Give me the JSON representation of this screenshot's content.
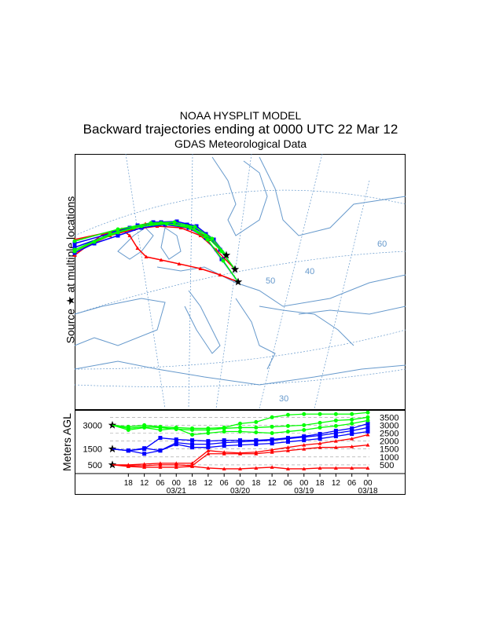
{
  "header": {
    "line1": "NOAA HYSPLIT MODEL",
    "line2": "Backward trajectories ending at 0000 UTC 22 Mar 12",
    "line3": "GDAS Meteorological Data"
  },
  "map": {
    "side_label": "Source ★ at multiple locations",
    "graticule_labels": [
      "60",
      "40",
      "50",
      "30"
    ]
  },
  "colors": {
    "red": "#ff0000",
    "blue": "#0000ff",
    "green": "#00ff00",
    "map": "#6699cc"
  },
  "chart_data": {
    "type": "line",
    "title": "Backward trajectories ending at 0000 UTC 22 Mar 12",
    "ylabel": "Meters AGL",
    "ylim": [
      0,
      4000
    ],
    "left_ticks": [
      "3000",
      "1500",
      "500"
    ],
    "right_ticks": [
      "3500",
      "3000",
      "2500",
      "2000",
      "1500",
      "1000",
      "500"
    ],
    "x_hours_back": [
      0,
      6,
      12,
      18,
      24,
      30,
      36,
      42,
      48,
      54,
      60,
      66,
      72,
      78,
      84,
      90,
      96
    ],
    "x_tick_labels": [
      "18",
      "12",
      "06",
      "00",
      "18",
      "12",
      "06",
      "00",
      "18",
      "12",
      "06",
      "00",
      "18",
      "12",
      "06",
      "00"
    ],
    "x_date_labels": [
      "03/21",
      "03/20",
      "03/19",
      "03/18"
    ],
    "series": [
      {
        "name": "red-500-a",
        "color": "red",
        "marker": "triangle",
        "values": [
          500,
          400,
          350,
          350,
          350,
          400,
          300,
          250,
          250,
          300,
          350,
          250,
          250,
          300,
          300,
          300,
          300
        ]
      },
      {
        "name": "red-500-b",
        "color": "red",
        "marker": "triangle",
        "values": [
          500,
          450,
          450,
          500,
          500,
          450,
          1200,
          1200,
          1200,
          1200,
          1300,
          1400,
          1500,
          1600,
          1600,
          1650,
          1750
        ]
      },
      {
        "name": "red-500-c",
        "color": "red",
        "marker": "triangle",
        "values": [
          500,
          500,
          550,
          600,
          600,
          600,
          1400,
          1300,
          1250,
          1300,
          1450,
          1600,
          1750,
          1850,
          2000,
          2150,
          2400
        ]
      },
      {
        "name": "blue-1500-a",
        "color": "blue",
        "marker": "square",
        "values": [
          1500,
          1400,
          1200,
          1400,
          1800,
          1600,
          1600,
          1700,
          1750,
          1800,
          1850,
          1950,
          2050,
          2150,
          2300,
          2450,
          2600
        ]
      },
      {
        "name": "blue-1500-b",
        "color": "blue",
        "marker": "square",
        "values": [
          1500,
          1400,
          1550,
          1400,
          1900,
          1800,
          1800,
          1900,
          1950,
          2000,
          2050,
          2150,
          2250,
          2350,
          2500,
          2650,
          2850
        ]
      },
      {
        "name": "blue-1500-c",
        "color": "blue",
        "marker": "square",
        "values": [
          1500,
          1400,
          1500,
          2200,
          2100,
          2050,
          2000,
          2050,
          2050,
          2050,
          2100,
          2200,
          2300,
          2450,
          2650,
          2800,
          3100
        ]
      },
      {
        "name": "green-3000-a",
        "color": "green",
        "marker": "circle",
        "values": [
          3000,
          2700,
          2850,
          2700,
          2800,
          2400,
          2500,
          2600,
          2600,
          2550,
          2500,
          2600,
          2700,
          2850,
          2950,
          3100,
          3300
        ]
      },
      {
        "name": "green-3000-b",
        "color": "green",
        "marker": "circle",
        "values": [
          3000,
          2800,
          2900,
          2850,
          2750,
          2700,
          2700,
          2800,
          2850,
          2850,
          2900,
          2950,
          3000,
          3150,
          3300,
          3350,
          3500
        ]
      },
      {
        "name": "green-3000-c",
        "color": "green",
        "marker": "circle",
        "values": [
          3000,
          2900,
          3000,
          2900,
          2850,
          2800,
          2800,
          2850,
          3100,
          3200,
          3500,
          3650,
          3700,
          3700,
          3700,
          3700,
          3800
        ]
      }
    ]
  }
}
